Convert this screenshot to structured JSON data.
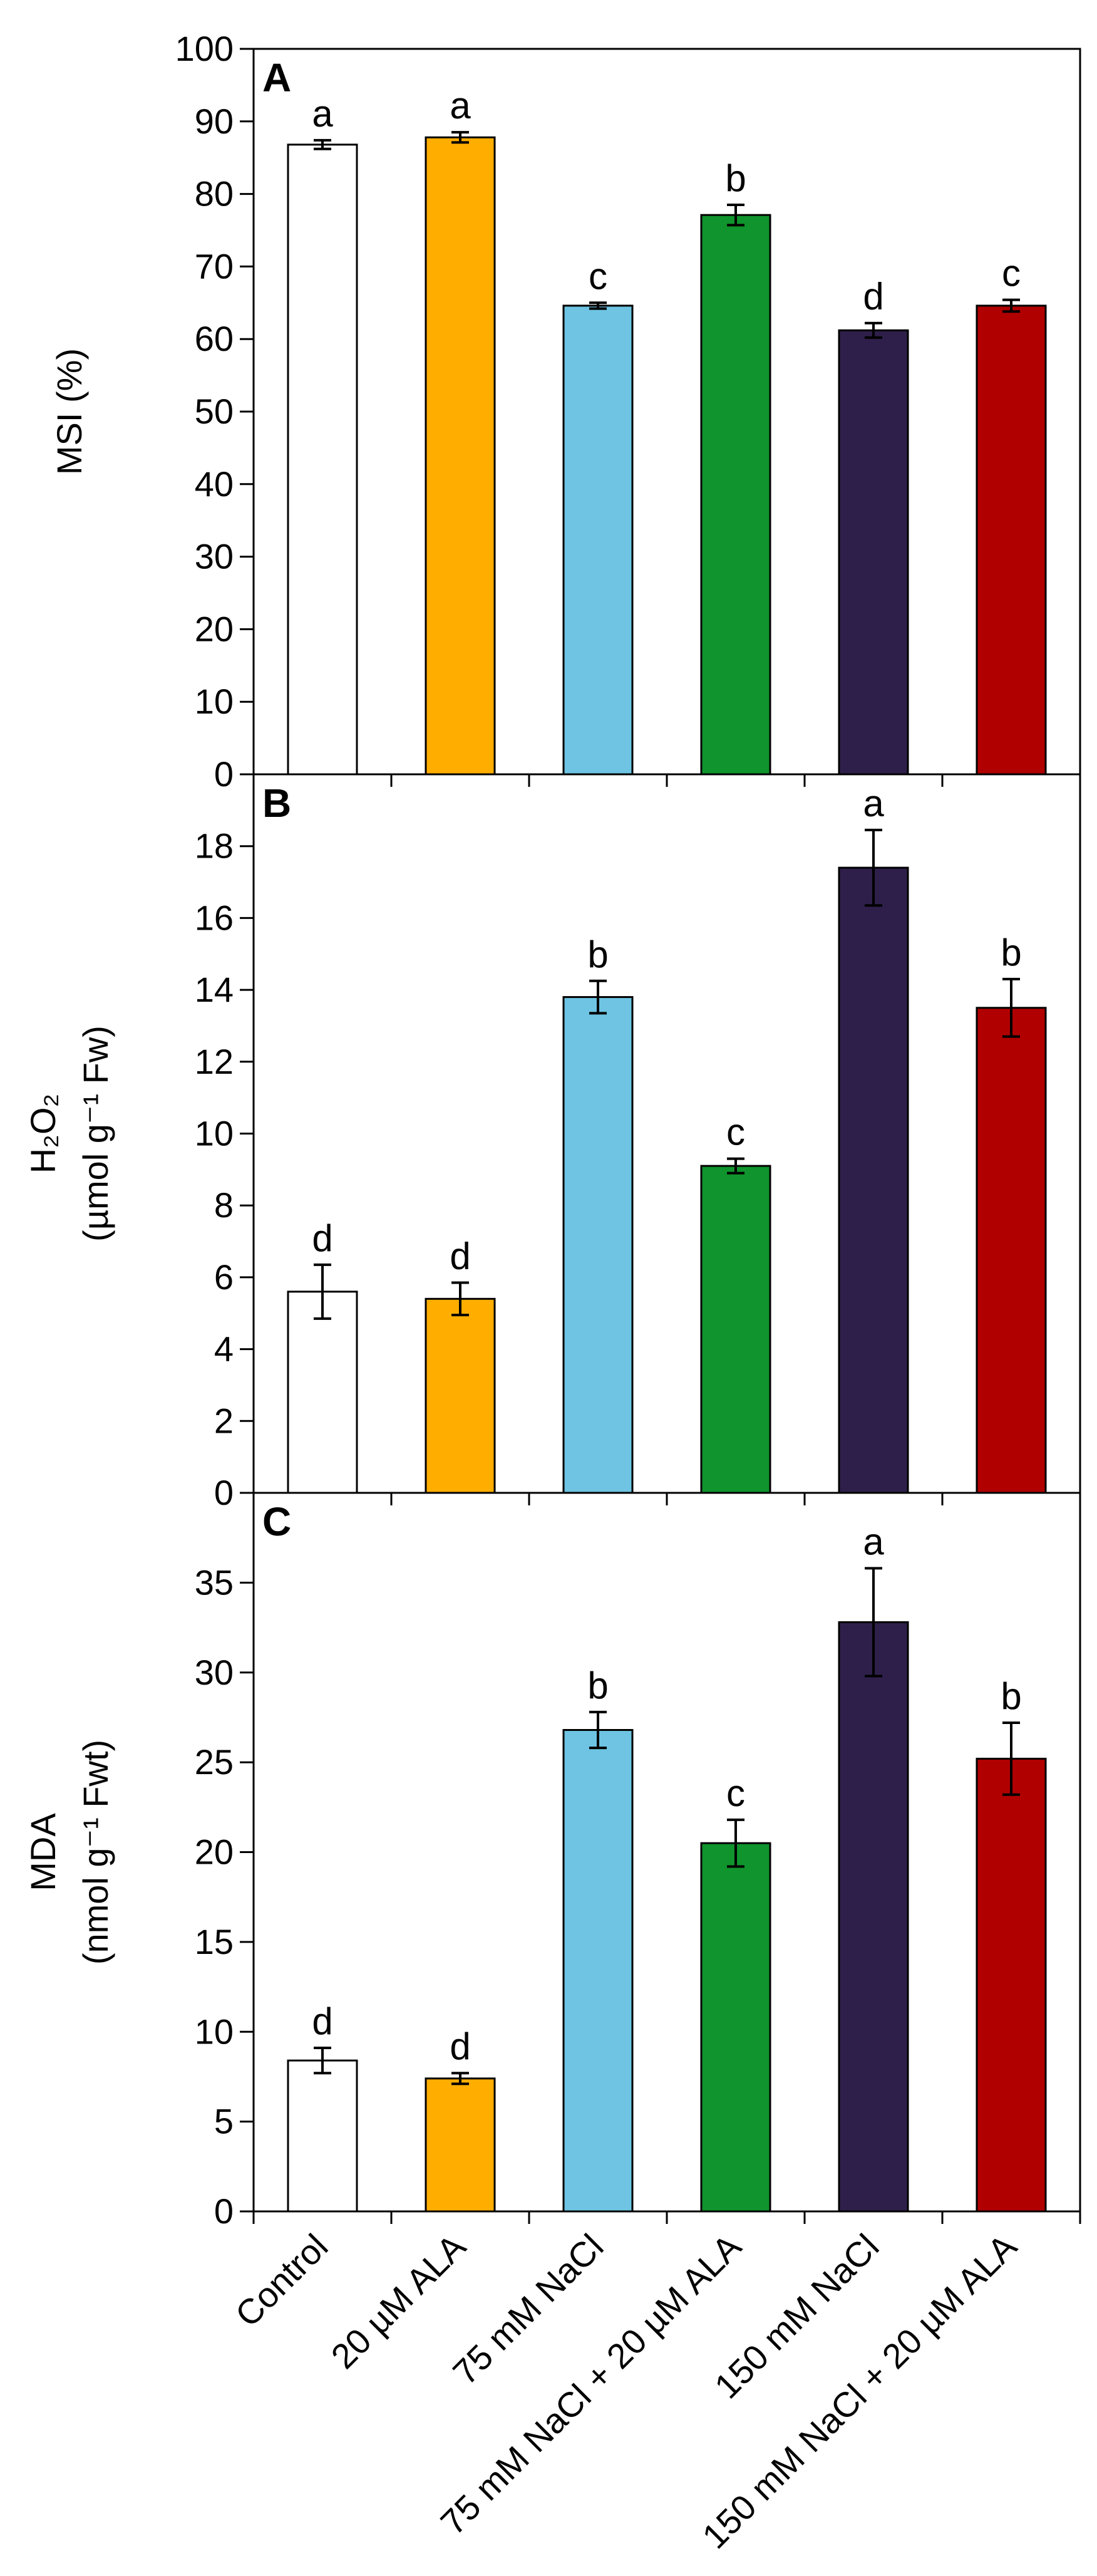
{
  "chart_data": [
    {
      "panel": "A",
      "type": "bar",
      "ylabel": [
        "MSI (%)"
      ],
      "ylim": [
        0,
        100
      ],
      "ticks": [
        0,
        10,
        20,
        30,
        40,
        50,
        60,
        70,
        80,
        90,
        100
      ],
      "values": [
        86.8,
        87.8,
        64.6,
        77.1,
        61.2,
        64.6
      ],
      "errors": [
        0.6,
        0.7,
        0.4,
        1.4,
        1.0,
        0.8
      ],
      "letters": [
        "a",
        "a",
        "c",
        "b",
        "d",
        "c"
      ]
    },
    {
      "panel": "B",
      "type": "bar",
      "ylabel": [
        "H₂O₂",
        "(µmol g⁻¹ Fw)"
      ],
      "ylim": [
        0,
        20
      ],
      "ticks": [
        0,
        2,
        4,
        6,
        8,
        10,
        12,
        14,
        16,
        18
      ],
      "values": [
        5.6,
        5.4,
        13.8,
        9.1,
        17.4,
        13.5
      ],
      "errors": [
        0.75,
        0.45,
        0.45,
        0.2,
        1.05,
        0.8
      ],
      "letters": [
        "d",
        "d",
        "b",
        "c",
        "a",
        "b"
      ]
    },
    {
      "panel": "C",
      "type": "bar",
      "ylabel": [
        "MDA",
        "(nmol g⁻¹ Fwt)"
      ],
      "ylim": [
        0,
        40
      ],
      "ticks": [
        0,
        5,
        10,
        15,
        20,
        25,
        30,
        35
      ],
      "values": [
        8.4,
        7.4,
        26.8,
        20.5,
        32.8,
        25.2
      ],
      "errors": [
        0.7,
        0.3,
        1.0,
        1.3,
        3.0,
        2.0
      ],
      "letters": [
        "d",
        "d",
        "b",
        "c",
        "a",
        "b"
      ]
    }
  ],
  "categories": [
    "Control",
    "20 µM ALA",
    "75 mM NaCl",
    "75 mM NaCl + 20 µM ALA",
    "150 mM NaCl",
    "150 mM NaCl + 20 µM ALA"
  ],
  "colors": [
    "#ffffff",
    "#ffae00",
    "#6ec4e2",
    "#10942d",
    "#2e1f4a",
    "#b00000"
  ]
}
